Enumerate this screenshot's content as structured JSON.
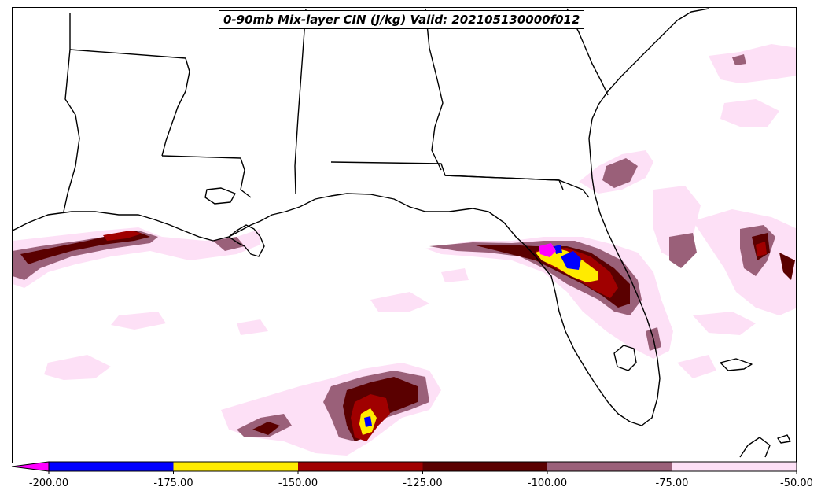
{
  "title": "0-90mb Mix-layer CIN (J/kg) Valid: 202105130000f012",
  "colorbar": {
    "tick_labels": [
      "-200.00",
      "-175.00",
      "-150.00",
      "-125.00",
      "-100.00",
      "-75.00",
      "-50.00"
    ],
    "bins": [
      {
        "from": -200,
        "to": -175,
        "color": "#0000ff"
      },
      {
        "from": -175,
        "to": -150,
        "color": "#ffeb00"
      },
      {
        "from": -150,
        "to": -125,
        "color": "#a00000"
      },
      {
        "from": -125,
        "to": -100,
        "color": "#5a0000"
      },
      {
        "from": -100,
        "to": -75,
        "color": "#9a6079"
      },
      {
        "from": -75,
        "to": -50,
        "color": "#fde0f6"
      }
    ],
    "extend_color": "#ff00ff"
  },
  "colors": {
    "light_pink": "#fde0f6",
    "mauve": "#9a6079",
    "dark_red": "#5a0000",
    "red": "#a00000",
    "yellow": "#ffeb00",
    "blue": "#0000ff",
    "magenta": "#ff00ff"
  }
}
